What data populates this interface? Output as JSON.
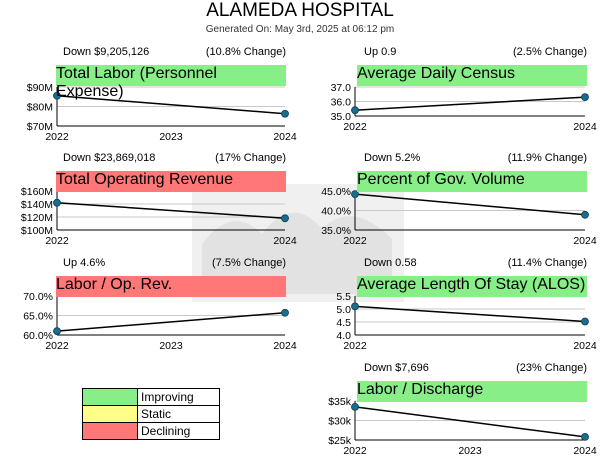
{
  "header": {
    "title": "ALAMEDA HOSPITAL",
    "subtitle": "Generated On: May 3rd, 2025 at 06:12 pm"
  },
  "legend": [
    {
      "label": "Improving",
      "color": "#88ee88"
    },
    {
      "label": "Static",
      "color": "#ffff88"
    },
    {
      "label": "Declining",
      "color": "#ff7777"
    }
  ],
  "chart_data": [
    {
      "type": "line",
      "title": "Total Labor (Personnel Expense)",
      "status": "improving",
      "direction_label": "Down $9,205,126",
      "change_label": "(10.8% Change)",
      "x": [
        2022,
        2024
      ],
      "x_ticks": [
        "2022",
        "2023",
        "2024"
      ],
      "values": [
        85.5,
        76.3
      ],
      "ylim": [
        70,
        90
      ],
      "y_ticks": [
        {
          "v": 70,
          "label": "$70M"
        },
        {
          "v": 80,
          "label": "$80M"
        },
        {
          "v": 90,
          "label": "$90M"
        }
      ]
    },
    {
      "type": "line",
      "title": "Average Daily Census",
      "status": "improving",
      "direction_label": "Up 0.9",
      "change_label": "(2.5% Change)",
      "x": [
        2022,
        2024
      ],
      "x_ticks": [
        "2022",
        "2024"
      ],
      "values": [
        35.4,
        36.3
      ],
      "ylim": [
        35.0,
        37.0
      ],
      "y_ticks": [
        {
          "v": 35,
          "label": "35.0"
        },
        {
          "v": 36,
          "label": "36.0"
        },
        {
          "v": 37,
          "label": "37.0"
        }
      ]
    },
    {
      "type": "line",
      "title": "Total Operating Revenue",
      "status": "declining",
      "direction_label": "Down $23,869,018",
      "change_label": "(17% Change)",
      "x": [
        2022,
        2024
      ],
      "x_ticks": [
        "2022",
        "2024"
      ],
      "values": [
        142,
        118
      ],
      "ylim": [
        100,
        160
      ],
      "y_ticks": [
        {
          "v": 100,
          "label": "$100M"
        },
        {
          "v": 120,
          "label": "$120M"
        },
        {
          "v": 140,
          "label": "$140M"
        },
        {
          "v": 160,
          "label": "$160M"
        }
      ]
    },
    {
      "type": "line",
      "title": "Percent of Gov. Volume",
      "status": "improving",
      "direction_label": "Down 5.2%",
      "change_label": "(11.9% Change)",
      "x": [
        2022,
        2024
      ],
      "x_ticks": [
        "2022",
        "2024"
      ],
      "values": [
        44.2,
        38.9
      ],
      "ylim": [
        35,
        45
      ],
      "y_ticks": [
        {
          "v": 35,
          "label": "35.0%"
        },
        {
          "v": 40,
          "label": "40.0%"
        },
        {
          "v": 45,
          "label": "45.0%"
        }
      ]
    },
    {
      "type": "line",
      "title": "Labor / Op. Rev.",
      "status": "declining",
      "direction_label": "Up 4.6%",
      "change_label": "(7.5% Change)",
      "x": [
        2022,
        2024
      ],
      "x_ticks": [
        "2022",
        "2023",
        "2024"
      ],
      "values": [
        61.0,
        65.7
      ],
      "ylim": [
        60,
        70
      ],
      "y_ticks": [
        {
          "v": 60,
          "label": "60.0%"
        },
        {
          "v": 65,
          "label": "65.0%"
        },
        {
          "v": 70,
          "label": "70.0%"
        }
      ]
    },
    {
      "type": "line",
      "title": "Average Length Of Stay (ALOS)",
      "status": "improving",
      "direction_label": "Down 0.58",
      "change_label": "(11.4% Change)",
      "x": [
        2022,
        2024
      ],
      "x_ticks": [
        "2022",
        "2024"
      ],
      "values": [
        5.1,
        4.52
      ],
      "ylim": [
        4.0,
        5.5
      ],
      "y_ticks": [
        {
          "v": 4.0,
          "label": "4.0"
        },
        {
          "v": 4.5,
          "label": "4.5"
        },
        {
          "v": 5.0,
          "label": "5.0"
        },
        {
          "v": 5.5,
          "label": "5.5"
        }
      ]
    },
    {
      "type": "line",
      "title": "Labor / Discharge",
      "status": "improving",
      "direction_label": "Down $7,696",
      "change_label": "(23% Change)",
      "x": [
        2022,
        2024
      ],
      "x_ticks": [
        "2022",
        "2023",
        "2024"
      ],
      "values": [
        33.5,
        25.8
      ],
      "ylim": [
        25,
        35
      ],
      "y_ticks": [
        {
          "v": 25,
          "label": "$25k"
        },
        {
          "v": 30,
          "label": "$30k"
        },
        {
          "v": 35,
          "label": "$35k"
        }
      ]
    }
  ]
}
